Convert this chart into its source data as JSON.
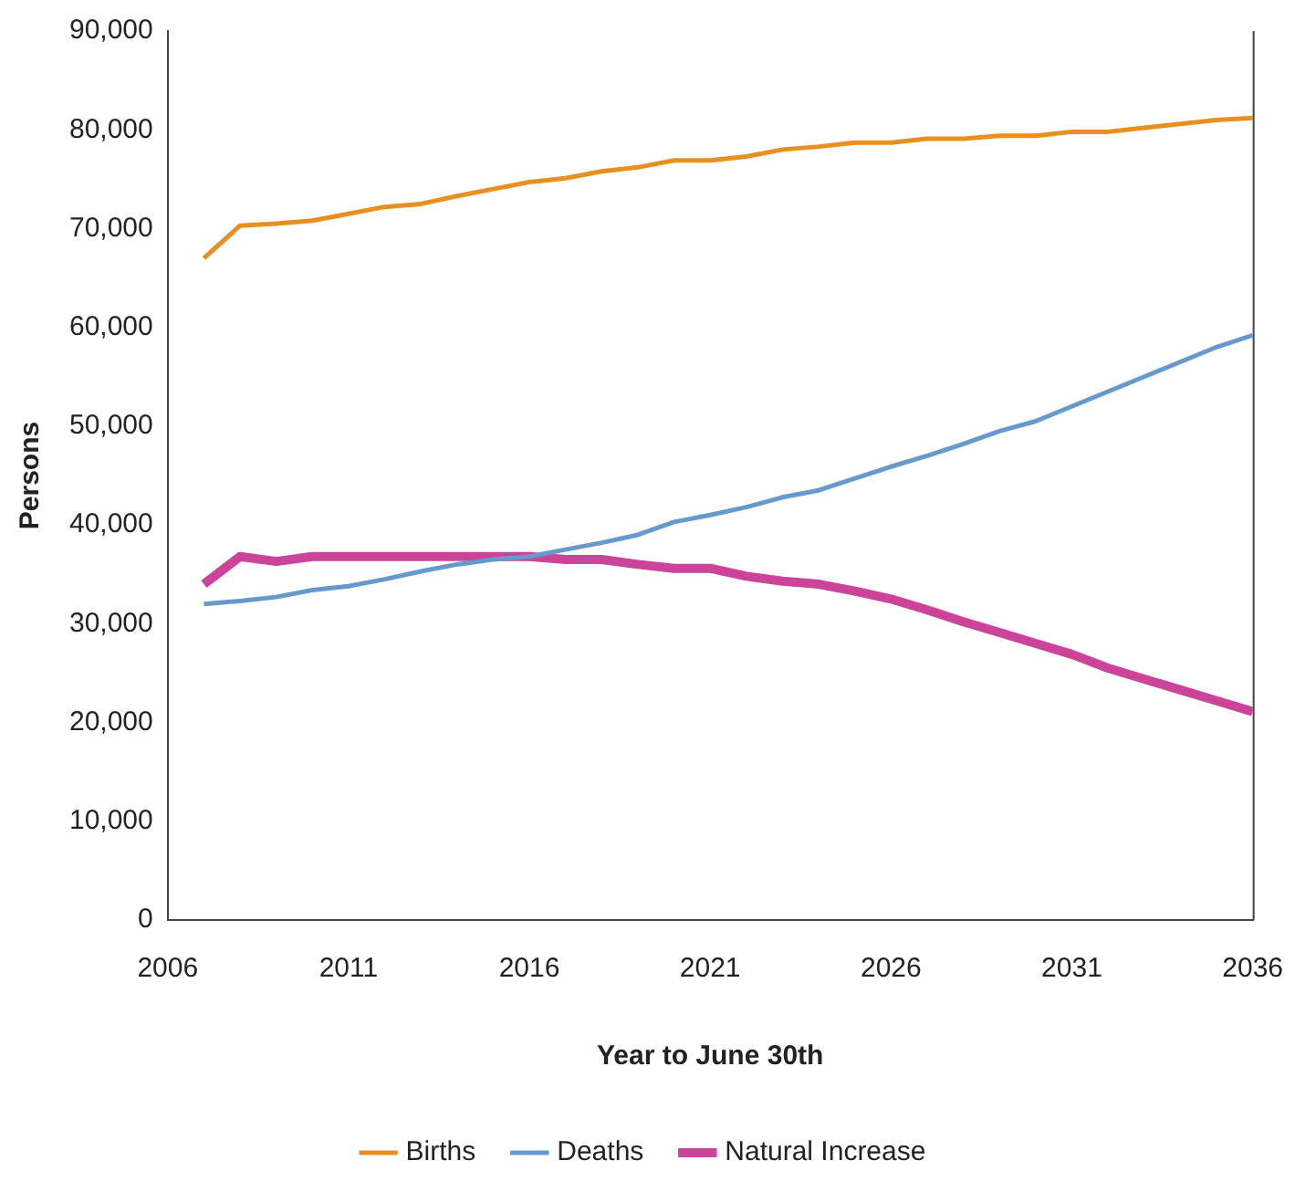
{
  "chart_data": {
    "type": "line",
    "xlabel": "Year to June 30th",
    "ylabel": "Persons",
    "x": [
      2007,
      2008,
      2009,
      2010,
      2011,
      2012,
      2013,
      2014,
      2015,
      2016,
      2017,
      2018,
      2019,
      2020,
      2021,
      2022,
      2023,
      2024,
      2025,
      2026,
      2027,
      2028,
      2029,
      2030,
      2031,
      2032,
      2033,
      2034,
      2035,
      2036
    ],
    "series": [
      {
        "name": "Births",
        "color": "#e8901f",
        "values": [
          67000,
          70300,
          70500,
          70800,
          71500,
          72200,
          72500,
          73300,
          74000,
          74700,
          75100,
          75800,
          76200,
          76900,
          76900,
          77300,
          78000,
          78300,
          78700,
          78700,
          79100,
          79100,
          79400,
          79400,
          79800,
          79800,
          80200,
          80600,
          81000,
          81200
        ]
      },
      {
        "name": "Deaths",
        "color": "#6699cc",
        "values": [
          32000,
          32300,
          32700,
          33400,
          33800,
          34500,
          35300,
          36000,
          36500,
          36800,
          37500,
          38200,
          39000,
          40300,
          41000,
          41800,
          42800,
          43500,
          44700,
          45900,
          47000,
          48200,
          49500,
          50500,
          52000,
          53500,
          55000,
          56500,
          58000,
          59200
        ]
      },
      {
        "name": "Natural Increase",
        "color": "#cc4499",
        "values": [
          34000,
          36800,
          36300,
          36800,
          36800,
          36800,
          36800,
          36800,
          36800,
          36800,
          36500,
          36500,
          36000,
          35600,
          35600,
          34800,
          34300,
          34000,
          33300,
          32500,
          31400,
          30200,
          29100,
          28000,
          26900,
          25500,
          24400,
          23300,
          22200,
          21100
        ]
      }
    ],
    "xlim": [
      2006,
      2036
    ],
    "xticks": [
      2006,
      2011,
      2016,
      2021,
      2026,
      2031,
      2036
    ],
    "ylim": [
      0,
      90000
    ],
    "yticks": [
      {
        "value": 0,
        "label": "0"
      },
      {
        "value": 10000,
        "label": "10,000"
      },
      {
        "value": 20000,
        "label": "20,000"
      },
      {
        "value": 30000,
        "label": "30,000"
      },
      {
        "value": 40000,
        "label": "40,000"
      },
      {
        "value": 50000,
        "label": "50,000"
      },
      {
        "value": 60000,
        "label": "60,000"
      },
      {
        "value": 70000,
        "label": "70,000"
      },
      {
        "value": 80000,
        "label": "80,000"
      },
      {
        "value": 90000,
        "label": "90,000"
      }
    ],
    "grid": false,
    "legend": "bottom",
    "marker": "none",
    "line_style": "solid"
  }
}
